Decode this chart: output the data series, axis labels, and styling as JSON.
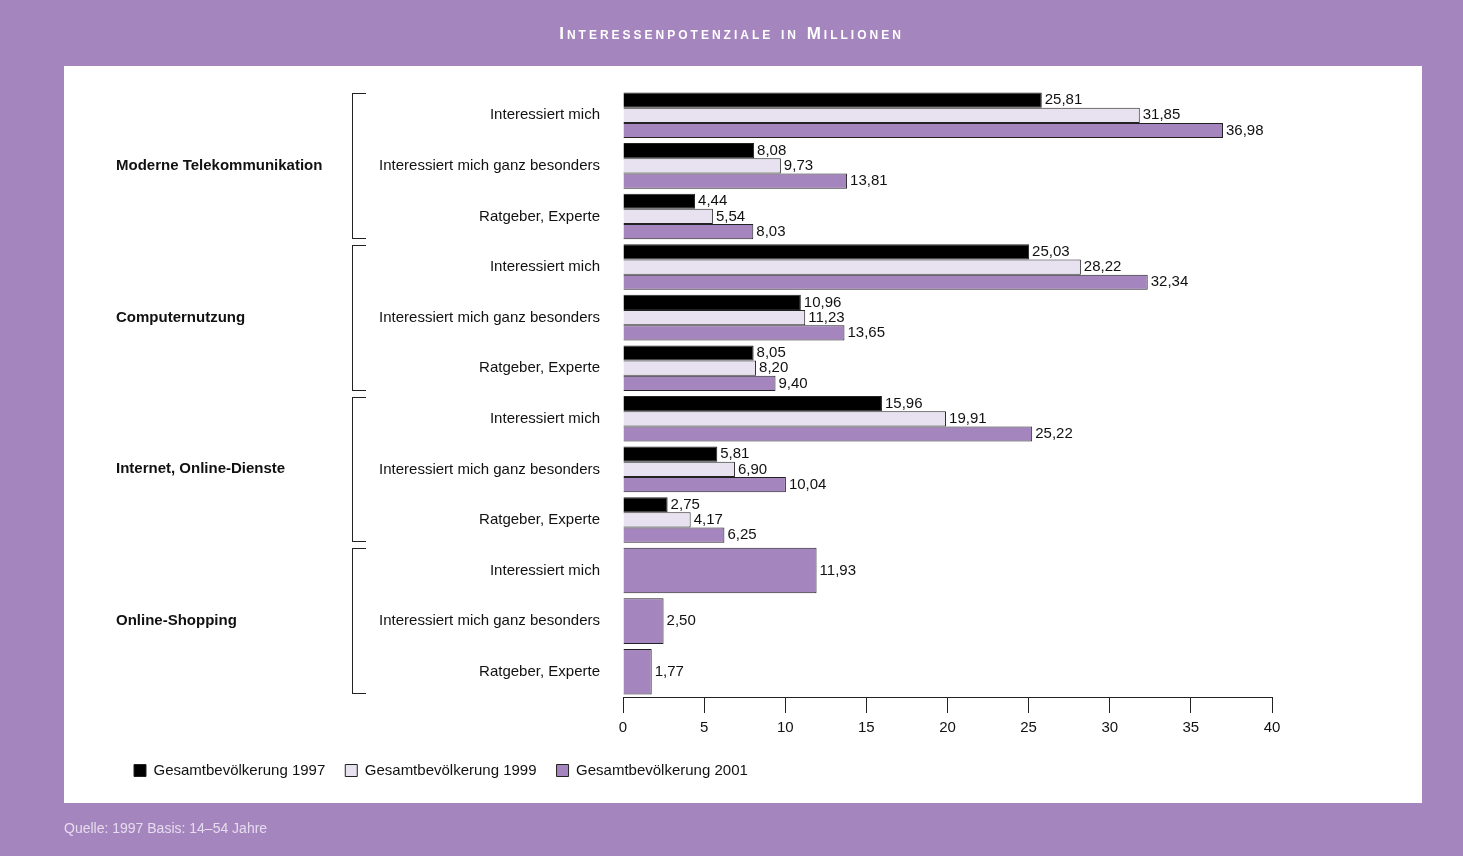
{
  "chart_data": {
    "type": "bar",
    "orientation": "horizontal",
    "title": "Interessenpotenziale in Millionen",
    "categories": [
      "Interessiert mich",
      "Interessiert mich ganz besonders",
      "Ratgeber, Experte",
      "Interessiert mich",
      "Interessiert mich ganz besonders",
      "Ratgeber, Experte",
      "Interessiert mich",
      "Interessiert mich ganz besonders",
      "Ratgeber, Experte",
      "Interessiert mich",
      "Interessiert mich ganz besonders",
      "Ratgeber, Experte"
    ],
    "series": [
      {
        "name": "Gesamtbevölkerung 1997",
        "color": "#000000",
        "values": [
          25.81,
          8.08,
          4.44,
          25.03,
          10.96,
          8.05,
          15.96,
          5.81,
          2.75,
          null,
          null,
          null
        ],
        "value_labels": [
          "25,81",
          "8,08",
          "4,44",
          "25,03",
          "10,96",
          "8,05",
          "15,96",
          "5,81",
          "2,75",
          null,
          null,
          null
        ]
      },
      {
        "name": "Gesamtbevölkerung 1999",
        "color": "#e8e2f0",
        "values": [
          31.85,
          9.73,
          5.54,
          28.22,
          11.23,
          8.2,
          19.91,
          6.9,
          4.17,
          null,
          null,
          null
        ],
        "value_labels": [
          "31,85",
          "9,73",
          "5,54",
          "28,22",
          "11,23",
          "8,20",
          "19,91",
          "6,90",
          "4,17",
          null,
          null,
          null
        ]
      },
      {
        "name": "Gesamtbevölkerung 2001",
        "color": "#a585bd",
        "values": [
          36.98,
          13.81,
          8.03,
          32.34,
          13.65,
          9.4,
          25.22,
          10.04,
          6.25,
          11.93,
          2.5,
          1.77
        ],
        "value_labels": [
          "36,98",
          "13,81",
          "8,03",
          "32,34",
          "13,65",
          "9,40",
          "25,22",
          "10,04",
          "6,25",
          "11,93",
          "2,50",
          "1,77"
        ]
      }
    ],
    "xlim": [
      0,
      40
    ],
    "xticks": [
      0,
      5,
      10,
      15,
      20,
      25,
      30,
      35,
      40
    ],
    "legend": "bottom left",
    "annotations": [
      "Moderne Telekommunikation",
      "Computernutzung",
      "Internet, Online-Dienste",
      "Online-Shopping",
      "Quelle: 1997 Basis: 14–54 Jahre"
    ]
  }
}
